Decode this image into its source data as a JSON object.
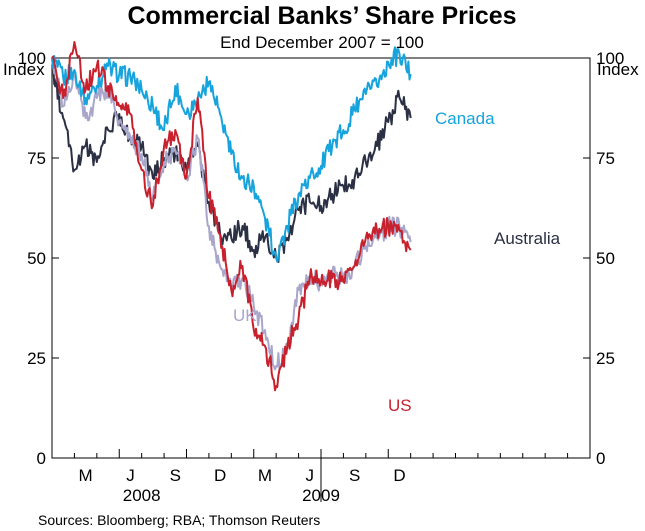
{
  "chart_data": {
    "type": "line",
    "title": "Commercial Banks’ Share Prices",
    "subtitle": "End December 2007 = 100",
    "ylabel_left": "Index",
    "ylabel_right": "Index",
    "ylim": [
      0,
      100
    ],
    "yticks": [
      0,
      25,
      50,
      75,
      100
    ],
    "xlim": [
      0,
      24
    ],
    "reference_line": 100,
    "month_labels": [
      {
        "label": "M",
        "pos": 1.5
      },
      {
        "label": "J",
        "pos": 3.5
      },
      {
        "label": "S",
        "pos": 5.5
      },
      {
        "label": "D",
        "pos": 7.5
      },
      {
        "label": "M",
        "pos": 9.5
      },
      {
        "label": "J",
        "pos": 11.5
      },
      {
        "label": "S",
        "pos": 13.5
      },
      {
        "label": "D",
        "pos": 15.5
      }
    ],
    "x_tick_positions": [
      3,
      6,
      9,
      12,
      15
    ],
    "year_labels": [
      {
        "label": "2008",
        "pos": 4
      },
      {
        "label": "2009",
        "pos": 12
      }
    ],
    "series": [
      {
        "name": "Canada",
        "color": "#17a3dc",
        "x": [
          0,
          0.5,
          1,
          1.5,
          2,
          2.5,
          3,
          3.5,
          4,
          4.5,
          5,
          5.5,
          6,
          6.5,
          7,
          7.5,
          8,
          8.5,
          9,
          9.5,
          10,
          10.5,
          11,
          11.5,
          12,
          12.5,
          13,
          13.5,
          14,
          14.5,
          15,
          15.5,
          16
        ],
        "values": [
          100,
          95,
          97,
          90,
          93,
          98,
          96,
          95,
          92,
          88,
          82,
          93,
          86,
          90,
          94,
          86,
          76,
          70,
          68,
          60,
          50,
          58,
          66,
          70,
          73,
          78,
          82,
          87,
          91,
          93,
          99,
          101,
          96
        ]
      },
      {
        "name": "Australia",
        "color": "#2b3044",
        "x": [
          0,
          0.5,
          1,
          1.5,
          2,
          2.5,
          3,
          3.5,
          4,
          4.5,
          5,
          5.5,
          6,
          6.5,
          7,
          7.5,
          8,
          8.5,
          9,
          9.5,
          10,
          10.5,
          11,
          11.5,
          12,
          12.5,
          13,
          13.5,
          14,
          14.5,
          15,
          15.5,
          16
        ],
        "values": [
          98,
          85,
          72,
          78,
          74,
          82,
          86,
          80,
          78,
          70,
          75,
          76,
          72,
          78,
          64,
          56,
          55,
          58,
          52,
          55,
          50,
          55,
          62,
          64,
          63,
          66,
          68,
          70,
          74,
          78,
          84,
          90,
          85
        ]
      },
      {
        "name": "UK",
        "color": "#a9a6cc",
        "x": [
          0,
          0.5,
          1,
          1.5,
          2,
          2.5,
          3,
          3.5,
          4,
          4.5,
          5,
          5.5,
          6,
          6.5,
          7,
          7.5,
          8,
          8.5,
          9,
          9.5,
          10,
          10.5,
          11,
          11.5,
          12,
          12.5,
          13,
          13.5,
          14,
          14.5,
          15,
          15.5,
          16
        ],
        "values": [
          100,
          88,
          96,
          85,
          90,
          92,
          84,
          80,
          76,
          65,
          74,
          77,
          70,
          80,
          58,
          48,
          42,
          45,
          38,
          32,
          23,
          28,
          42,
          45,
          44,
          46,
          45,
          48,
          53,
          55,
          58,
          58,
          54
        ]
      },
      {
        "name": "US",
        "color": "#c8212e",
        "x": [
          0,
          0.5,
          1,
          1.5,
          2,
          2.5,
          3,
          3.5,
          4,
          4.5,
          5,
          5.5,
          6,
          6.5,
          7,
          7.5,
          8,
          8.5,
          9,
          9.5,
          10,
          10.5,
          11,
          11.5,
          12,
          12.5,
          13,
          13.5,
          14,
          14.5,
          15,
          15.5,
          16
        ],
        "values": [
          100,
          90,
          104,
          92,
          98,
          93,
          88,
          86,
          72,
          63,
          78,
          82,
          70,
          90,
          65,
          56,
          42,
          48,
          32,
          28,
          18,
          28,
          35,
          45,
          44,
          45,
          44,
          48,
          55,
          57,
          58,
          57,
          52
        ]
      }
    ],
    "series_labels": [
      {
        "text": "Canada",
        "color": "#17a3dc"
      },
      {
        "text": "Australia",
        "color": "#2b3044"
      },
      {
        "text": "UK",
        "color": "#a9a6cc"
      },
      {
        "text": "US",
        "color": "#c8212e"
      }
    ],
    "source": "Sources: Bloomberg; RBA; Thomson Reuters"
  }
}
